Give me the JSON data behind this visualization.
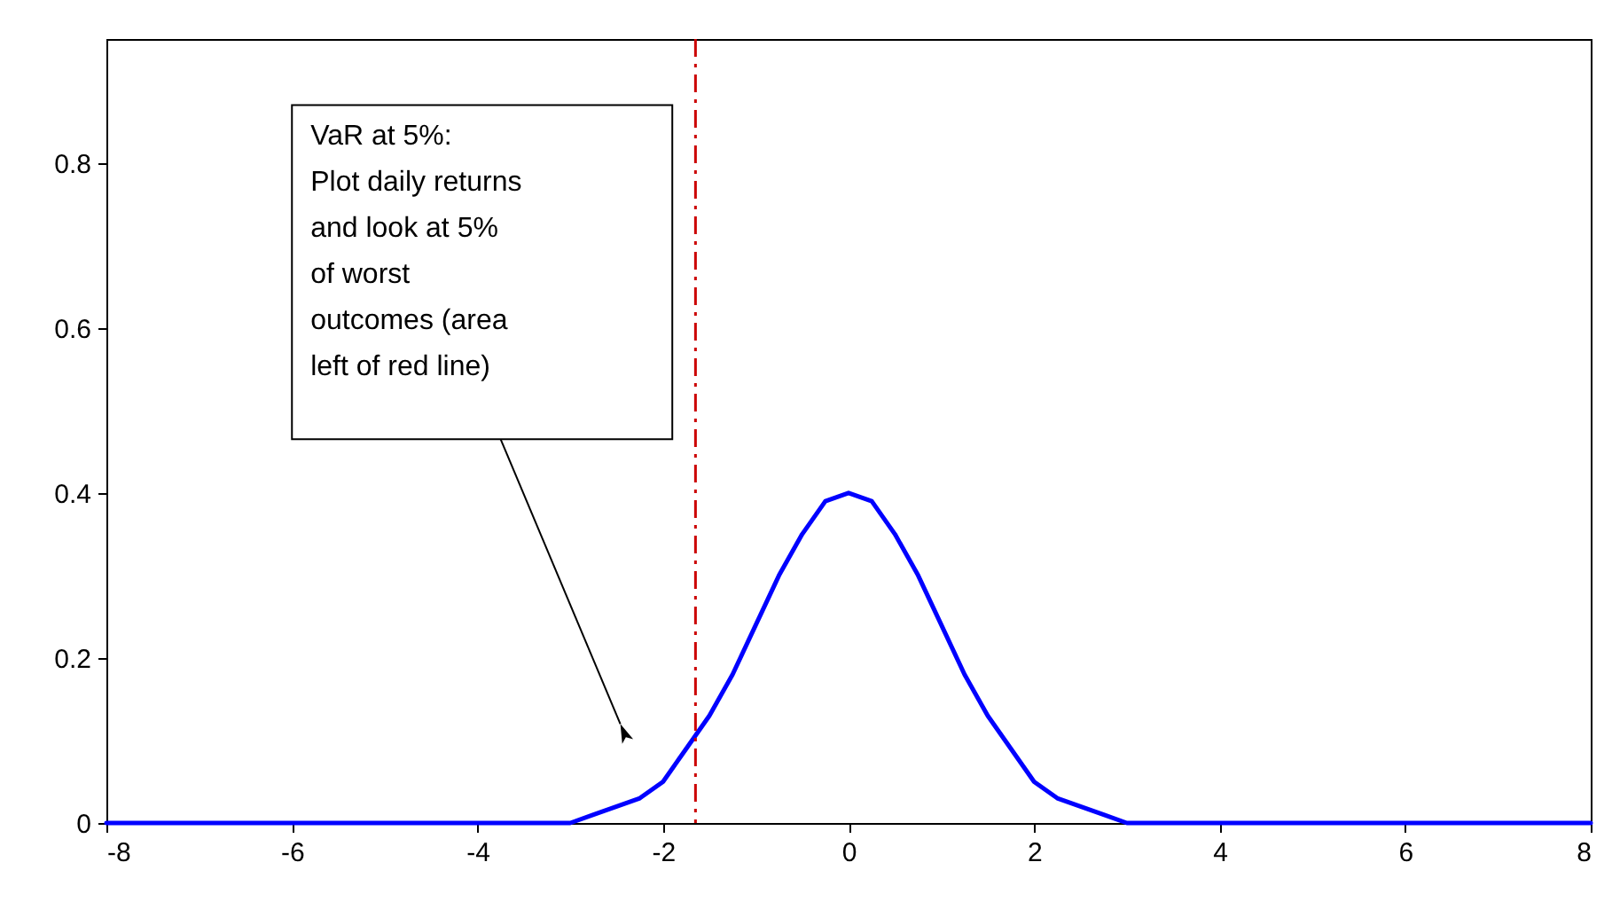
{
  "chart_data": {
    "type": "line",
    "x": [
      -8,
      -6,
      -4,
      -3.5,
      -3,
      -2.75,
      -2.5,
      -2.25,
      -2,
      -1.75,
      -1.5,
      -1.25,
      -1,
      -0.75,
      -0.5,
      -0.25,
      0,
      0.25,
      0.5,
      0.75,
      1,
      1.25,
      1.5,
      1.75,
      2,
      2.25,
      2.5,
      2.75,
      3,
      3.5,
      4,
      6,
      8
    ],
    "series": [
      {
        "color": "#0000ff",
        "values": [
          0,
          0,
          0,
          0,
          0,
          0.01,
          0.02,
          0.03,
          0.05,
          0.09,
          0.13,
          0.18,
          0.24,
          0.3,
          0.35,
          0.39,
          0.4,
          0.39,
          0.35,
          0.3,
          0.24,
          0.18,
          0.13,
          0.09,
          0.05,
          0.03,
          0.02,
          0.01,
          0,
          0,
          0,
          0,
          0
        ]
      }
    ],
    "xlim": [
      -8,
      8
    ],
    "xticks": [
      -8,
      -6,
      -4,
      -2,
      0,
      2,
      4,
      6,
      8
    ],
    "ylim": [
      0,
      0.95
    ],
    "yticks": [
      {
        "value": 0,
        "label": "0"
      },
      0.2,
      0.4,
      0.6,
      0.8
    ],
    "marker": "none",
    "line_style": "solid",
    "ref_lines": [
      {
        "axis": "x",
        "value": -1.65,
        "color": "#cc0000",
        "line_style": "dashed"
      }
    ],
    "annotations": [
      "VaR at 5%:\nPlot daily returns\nand look at 5%\nof worst\noutcomes (area\nleft of red line)"
    ]
  }
}
